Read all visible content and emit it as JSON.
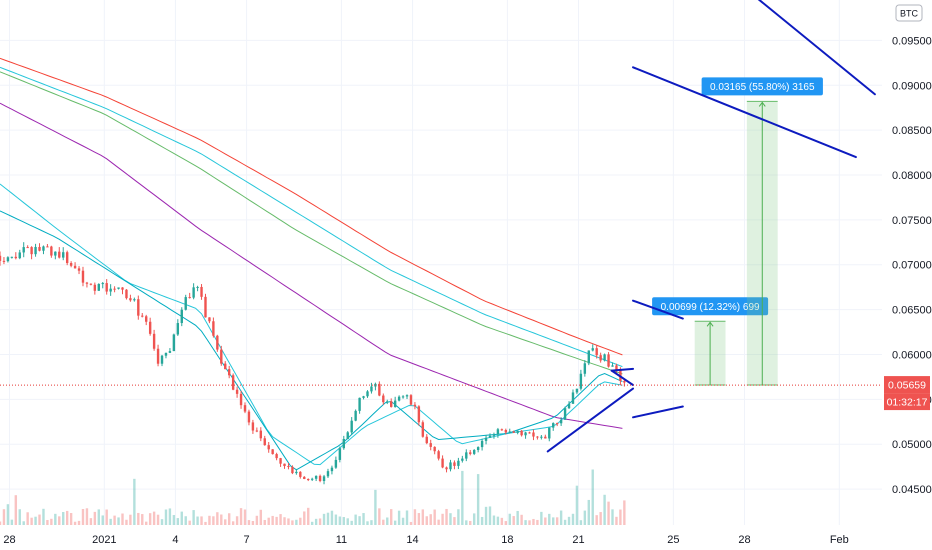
{
  "chart_data": {
    "type": "candlestick",
    "symbol_currency": "BTC",
    "price_axis": {
      "min": 0.041,
      "max": 0.0995,
      "ticks": [
        "0.09500",
        "0.09000",
        "0.08500",
        "0.08000",
        "0.07500",
        "0.07000",
        "0.06500",
        "0.06000",
        "0.05500",
        "0.05000",
        "0.04500"
      ]
    },
    "time_axis": {
      "labels": [
        {
          "text": "28",
          "day": 0
        },
        {
          "text": "2021",
          "day": 4
        },
        {
          "text": "4",
          "day": 7
        },
        {
          "text": "7",
          "day": 10
        },
        {
          "text": "11",
          "day": 14
        },
        {
          "text": "14",
          "day": 17
        },
        {
          "text": "18",
          "day": 21
        },
        {
          "text": "21",
          "day": 24
        },
        {
          "text": "25",
          "day": 28
        },
        {
          "text": "28",
          "day": 31
        },
        {
          "text": "Feb",
          "day": 35
        }
      ],
      "day_min": -0.4,
      "day_max": 36.8
    },
    "current_price": {
      "value": 0.05659,
      "label": "0.05659",
      "countdown": "01:32:17"
    },
    "candle_anchors": [
      {
        "day": -0.4,
        "price": 0.071
      },
      {
        "day": 0.5,
        "price": 0.0712
      },
      {
        "day": 1.5,
        "price": 0.072
      },
      {
        "day": 2.5,
        "price": 0.0705
      },
      {
        "day": 3.3,
        "price": 0.068
      },
      {
        "day": 4.2,
        "price": 0.0672
      },
      {
        "day": 5.0,
        "price": 0.0668
      },
      {
        "day": 5.7,
        "price": 0.0638
      },
      {
        "day": 6.3,
        "price": 0.059
      },
      {
        "day": 6.8,
        "price": 0.0605
      },
      {
        "day": 7.3,
        "price": 0.0655
      },
      {
        "day": 7.8,
        "price": 0.0678
      },
      {
        "day": 8.3,
        "price": 0.0645
      },
      {
        "day": 9.0,
        "price": 0.059
      },
      {
        "day": 10.0,
        "price": 0.053
      },
      {
        "day": 11.0,
        "price": 0.049
      },
      {
        "day": 12.0,
        "price": 0.0465
      },
      {
        "day": 13.0,
        "price": 0.0462
      },
      {
        "day": 13.6,
        "price": 0.047
      },
      {
        "day": 14.2,
        "price": 0.051
      },
      {
        "day": 14.8,
        "price": 0.0555
      },
      {
        "day": 15.3,
        "price": 0.057
      },
      {
        "day": 15.8,
        "price": 0.054
      },
      {
        "day": 16.5,
        "price": 0.0555
      },
      {
        "day": 17.0,
        "price": 0.0545
      },
      {
        "day": 17.6,
        "price": 0.05
      },
      {
        "day": 18.3,
        "price": 0.0475
      },
      {
        "day": 19.0,
        "price": 0.048
      },
      {
        "day": 20.0,
        "price": 0.0505
      },
      {
        "day": 21.0,
        "price": 0.0518
      },
      {
        "day": 22.0,
        "price": 0.0512
      },
      {
        "day": 22.6,
        "price": 0.051
      },
      {
        "day": 23.4,
        "price": 0.0535
      },
      {
        "day": 24.0,
        "price": 0.0565
      },
      {
        "day": 24.4,
        "price": 0.0605
      },
      {
        "day": 24.9,
        "price": 0.06
      },
      {
        "day": 25.3,
        "price": 0.059
      },
      {
        "day": 25.7,
        "price": 0.0575
      },
      {
        "day": 26.0,
        "price": 0.0566
      }
    ],
    "moving_averages": [
      {
        "color": "#f44336",
        "points": [
          [
            -0.4,
            0.093
          ],
          [
            4,
            0.0888
          ],
          [
            8,
            0.084
          ],
          [
            12,
            0.078
          ],
          [
            16,
            0.0715
          ],
          [
            20,
            0.066
          ],
          [
            24,
            0.0618
          ],
          [
            26,
            0.0598
          ]
        ]
      },
      {
        "color": "#26c6da",
        "points": [
          [
            -0.4,
            0.092
          ],
          [
            4,
            0.0875
          ],
          [
            8,
            0.0825
          ],
          [
            12,
            0.076
          ],
          [
            16,
            0.0695
          ],
          [
            20,
            0.0645
          ],
          [
            24,
            0.0605
          ],
          [
            26,
            0.0585
          ]
        ]
      },
      {
        "color": "#66bb6a",
        "points": [
          [
            -0.4,
            0.0915
          ],
          [
            4,
            0.0868
          ],
          [
            8,
            0.0808
          ],
          [
            12,
            0.074
          ],
          [
            16,
            0.068
          ],
          [
            20,
            0.0632
          ],
          [
            24,
            0.0595
          ],
          [
            26,
            0.0577
          ]
        ]
      },
      {
        "color": "#9c27b0",
        "points": [
          [
            -0.4,
            0.088
          ],
          [
            4,
            0.082
          ],
          [
            8,
            0.074
          ],
          [
            12,
            0.067
          ],
          [
            16,
            0.06
          ],
          [
            20,
            0.056
          ],
          [
            23,
            0.053
          ],
          [
            26,
            0.0517
          ]
        ]
      },
      {
        "color": "#26c6da",
        "points": [
          [
            -0.4,
            0.079
          ],
          [
            2,
            0.074
          ],
          [
            5,
            0.068
          ],
          [
            8,
            0.065
          ],
          [
            11,
            0.051
          ],
          [
            13,
            0.0475
          ],
          [
            15,
            0.052
          ],
          [
            17,
            0.0545
          ],
          [
            19,
            0.05
          ],
          [
            21,
            0.0512
          ],
          [
            23,
            0.052
          ],
          [
            25,
            0.057
          ],
          [
            26,
            0.0565
          ]
        ]
      },
      {
        "color": "#00acc1",
        "points": [
          [
            -0.4,
            0.076
          ],
          [
            2,
            0.073
          ],
          [
            5,
            0.068
          ],
          [
            8,
            0.063
          ],
          [
            10,
            0.055
          ],
          [
            12,
            0.047
          ],
          [
            14,
            0.05
          ],
          [
            16,
            0.055
          ],
          [
            18,
            0.0505
          ],
          [
            21,
            0.0512
          ],
          [
            23,
            0.053
          ],
          [
            25,
            0.058
          ],
          [
            26,
            0.0568
          ]
        ]
      }
    ],
    "trendlines": [
      {
        "color": "#0d1bbf",
        "from": {
          "day": 30.7,
          "price": 0.1015
        },
        "to": {
          "day": 36.5,
          "price": 0.089
        }
      },
      {
        "color": "#0d1bbf",
        "from": {
          "day": 26.3,
          "price": 0.092
        },
        "to": {
          "day": 35.7,
          "price": 0.082
        }
      },
      {
        "color": "#0d1bbf",
        "from": {
          "day": 26.3,
          "price": 0.066
        },
        "to": {
          "day": 28.4,
          "price": 0.064
        }
      },
      {
        "color": "#0d1bbf",
        "from": {
          "day": 26.3,
          "price": 0.053
        },
        "to": {
          "day": 28.4,
          "price": 0.0542
        }
      },
      {
        "color": "#0d1bbf",
        "from": {
          "day": 22.7,
          "price": 0.0492
        },
        "to": {
          "day": 26.3,
          "price": 0.0562
        }
      },
      {
        "color": "#0d1bbf",
        "from": {
          "day": 25.4,
          "price": 0.0582
        },
        "to": {
          "day": 26.3,
          "price": 0.0584
        }
      },
      {
        "color": "#0d1bbf",
        "from": {
          "day": 25.4,
          "price": 0.0582
        },
        "to": {
          "day": 26.3,
          "price": 0.0566
        }
      }
    ],
    "measure_boxes": [
      {
        "day_from": 28.9,
        "day_to": 30.2,
        "price_from": 0.0566,
        "price_to": 0.0637,
        "label": "0.00699 (12.32%) 699"
      },
      {
        "day_from": 31.1,
        "day_to": 32.4,
        "price_from": 0.0566,
        "price_to": 0.0882,
        "label": "0.03165 (55.80%) 3165"
      }
    ]
  }
}
